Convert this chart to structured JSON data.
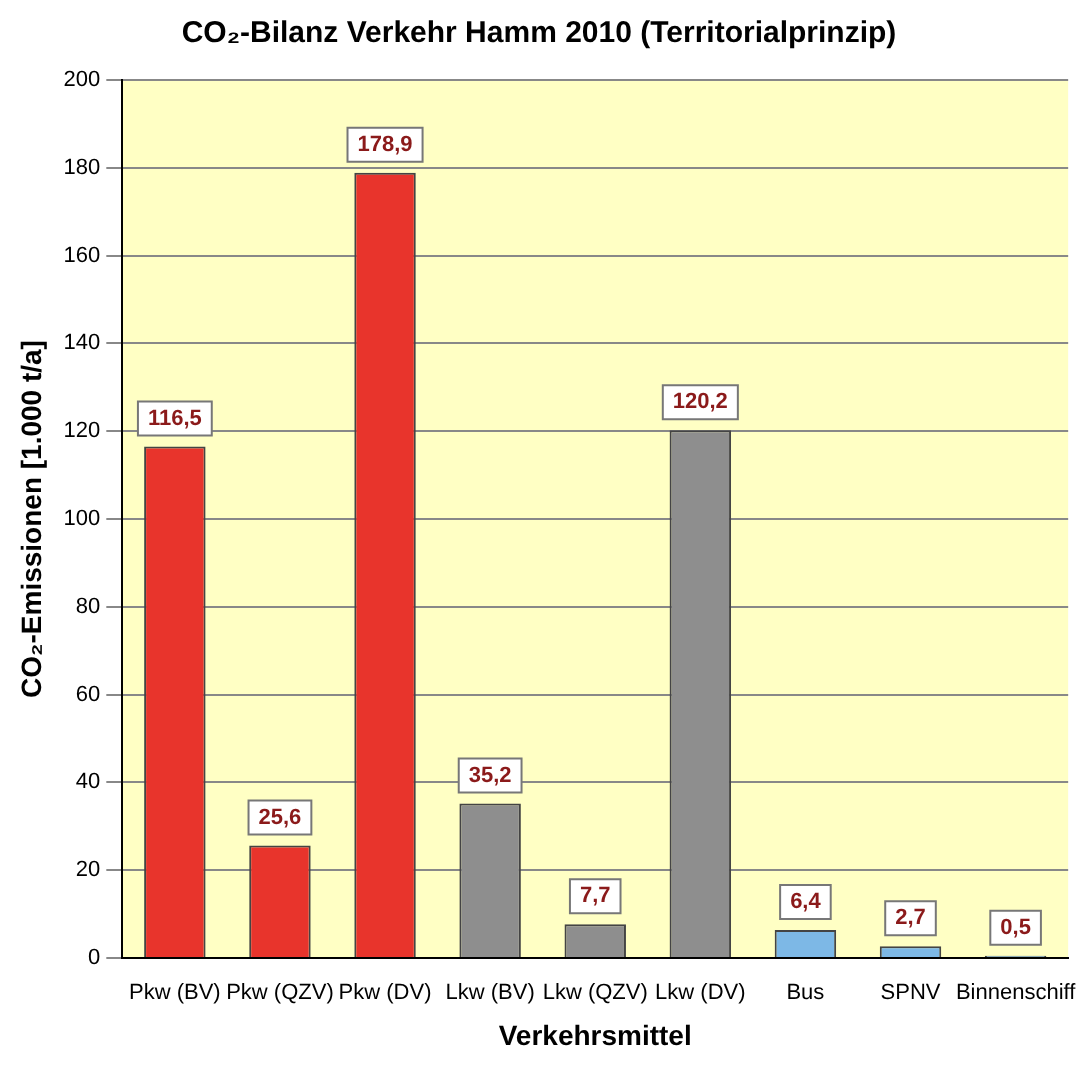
{
  "chart_data": {
    "type": "bar",
    "title": "CO₂-Bilanz Verkehr Hamm 2010 (Territorialprinzip)",
    "xlabel": "Verkehrsmittel",
    "ylabel": "CO₂-Emissionen [1.000 t/a]",
    "categories": [
      "Pkw (BV)",
      "Pkw (QZV)",
      "Pkw (DV)",
      "Lkw (BV)",
      "Lkw (QZV)",
      "Lkw (DV)",
      "Bus",
      "SPNV",
      "Binnenschiff"
    ],
    "values": [
      116.5,
      25.6,
      178.9,
      35.2,
      7.7,
      120.2,
      6.4,
      2.7,
      0.5
    ],
    "value_labels": [
      "116,5",
      "25,6",
      "178,9",
      "35,2",
      "7,7",
      "120,2",
      "6,4",
      "2,7",
      "0,5"
    ],
    "colors": [
      "#e8342c",
      "#e8342c",
      "#e8342c",
      "#8e8e8e",
      "#8e8e8e",
      "#8e8e8e",
      "#7db8e6",
      "#7db8e6",
      "#7db8e6"
    ],
    "ylim": [
      0,
      200
    ],
    "yticks": [
      0,
      20,
      40,
      60,
      80,
      100,
      120,
      140,
      160,
      180,
      200
    ],
    "grid": "y",
    "legend": false
  }
}
